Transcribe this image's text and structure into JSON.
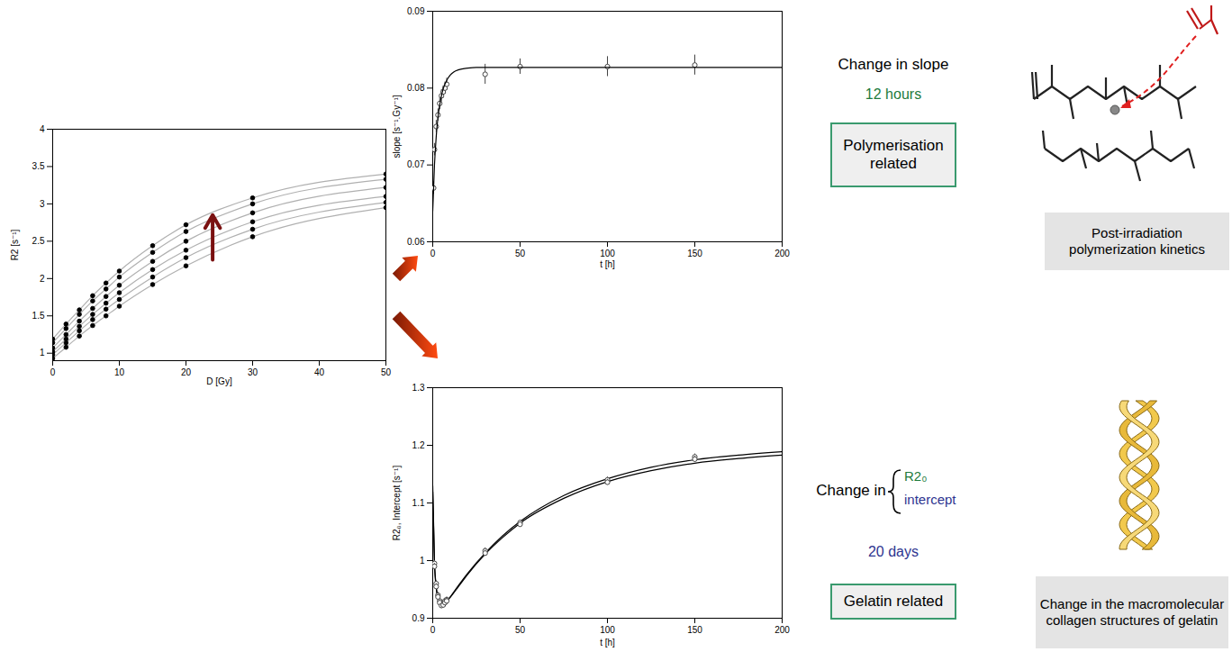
{
  "chart_data": [
    {
      "type": "line",
      "xlabel": "D [Gy]",
      "ylabel": "R2 [s⁻¹]",
      "x": [
        0,
        2,
        4,
        6,
        8,
        10,
        15,
        20,
        30,
        50
      ],
      "series": [
        {
          "color": "#b0b0b0",
          "marker": "circle",
          "values": [
            0.93,
            1.08,
            1.23,
            1.37,
            1.5,
            1.63,
            1.92,
            2.17,
            2.56,
            2.95
          ]
        },
        {
          "color": "#b0b0b0",
          "marker": "circle",
          "values": [
            0.98,
            1.14,
            1.3,
            1.45,
            1.59,
            1.72,
            2.02,
            2.28,
            2.66,
            3.02
          ]
        },
        {
          "color": "#b0b0b0",
          "marker": "circle",
          "values": [
            1.02,
            1.19,
            1.36,
            1.52,
            1.67,
            1.81,
            2.12,
            2.38,
            2.76,
            3.1
          ]
        },
        {
          "color": "#b0b0b0",
          "marker": "circle",
          "values": [
            1.07,
            1.25,
            1.43,
            1.6,
            1.76,
            1.91,
            2.23,
            2.5,
            2.88,
            3.22
          ]
        },
        {
          "color": "#b0b0b0",
          "marker": "circle",
          "values": [
            1.14,
            1.33,
            1.52,
            1.7,
            1.86,
            2.02,
            2.35,
            2.63,
            3.0,
            3.33
          ]
        },
        {
          "color": "#b0b0b0",
          "marker": "circle",
          "values": [
            1.19,
            1.39,
            1.58,
            1.77,
            1.94,
            2.1,
            2.44,
            2.72,
            3.08,
            3.4
          ]
        }
      ],
      "xlim": [
        0,
        50
      ],
      "ylim": [
        0.9,
        4
      ],
      "xticks": [
        0,
        10,
        20,
        30,
        40,
        50
      ],
      "yticks": [
        1,
        1.5,
        2,
        2.5,
        3,
        3.5,
        4
      ],
      "annotations": [
        {
          "type": "arrow",
          "x": 24,
          "y1": 2.25,
          "y2": 2.85,
          "color": "#7a1010"
        }
      ]
    },
    {
      "type": "scatter",
      "xlabel": "t [h]",
      "ylabel": "slope [s⁻¹.Gy⁻¹]",
      "series": [
        {
          "type": "scatter",
          "marker": "open_circle",
          "color": "#444444",
          "x": [
            0.5,
            1,
            2,
            3,
            4,
            5,
            6,
            7,
            8,
            30,
            50,
            100,
            150
          ],
          "values": [
            0.067,
            0.072,
            0.075,
            0.0765,
            0.078,
            0.079,
            0.0795,
            0.08,
            0.0805,
            0.0818,
            0.0828,
            0.0828,
            0.083
          ],
          "errors": [
            0.0008,
            0.0008,
            0.0008,
            0.0008,
            0.0008,
            0.0008,
            0.0008,
            0.0008,
            0.0008,
            0.0013,
            0.001,
            0.0013,
            0.0013
          ]
        },
        {
          "type": "line",
          "color": "#000000",
          "x": [
            0,
            1,
            2,
            3,
            4,
            5,
            6,
            8,
            10,
            12,
            15,
            20,
            25,
            30,
            50,
            100,
            150,
            200
          ],
          "values": [
            0.064,
            0.07,
            0.0737,
            0.0762,
            0.0778,
            0.079,
            0.0799,
            0.081,
            0.0817,
            0.0821,
            0.0824,
            0.0826,
            0.0827,
            0.0827,
            0.0827,
            0.0827,
            0.0827,
            0.0827
          ]
        }
      ],
      "xlim": [
        0,
        200
      ],
      "ylim": [
        0.06,
        0.09
      ],
      "xticks": [
        0,
        50,
        100,
        150,
        200
      ],
      "yticks": [
        0.06,
        0.07,
        0.08,
        0.09
      ]
    },
    {
      "type": "scatter",
      "xlabel": "t [h]",
      "ylabel": "R2₀, Intercept [s⁻¹]",
      "series": [
        {
          "type": "line",
          "color": "#000000",
          "x": [
            0,
            1,
            2,
            3,
            4,
            5,
            6,
            8,
            10,
            15,
            20,
            30,
            40,
            50,
            75,
            100,
            125,
            150,
            175,
            200
          ],
          "values": [
            1.13,
            1.0,
            0.955,
            0.935,
            0.926,
            0.923,
            0.924,
            0.93,
            0.937,
            0.958,
            0.978,
            1.013,
            1.043,
            1.068,
            1.113,
            1.142,
            1.162,
            1.175,
            1.183,
            1.189
          ]
        },
        {
          "type": "line",
          "color": "#000000",
          "x": [
            0,
            1,
            2,
            3,
            4,
            5,
            6,
            8,
            10,
            15,
            20,
            30,
            40,
            50,
            75,
            100,
            125,
            150,
            175,
            200
          ],
          "values": [
            1.12,
            0.995,
            0.952,
            0.933,
            0.925,
            0.922,
            0.923,
            0.929,
            0.936,
            0.956,
            0.976,
            1.011,
            1.04,
            1.065,
            1.108,
            1.137,
            1.156,
            1.169,
            1.177,
            1.183
          ]
        },
        {
          "type": "scatter",
          "marker": "open_circle",
          "color": "#444444",
          "x": [
            1,
            2,
            3,
            4,
            5,
            6,
            7,
            8,
            30,
            50,
            100,
            150
          ],
          "values": [
            0.995,
            0.96,
            0.94,
            0.93,
            0.925,
            0.925,
            0.93,
            0.932,
            1.017,
            1.066,
            1.14,
            1.18
          ],
          "errors": [
            0.005,
            0.005,
            0.005,
            0.005,
            0.005,
            0.005,
            0.005,
            0.005,
            0.005,
            0.004,
            0.005,
            0.005
          ]
        },
        {
          "type": "scatter",
          "marker": "open_circle",
          "color": "#444444",
          "x": [
            1,
            2,
            3,
            4,
            5,
            6,
            7,
            8,
            30,
            50,
            100,
            150
          ],
          "values": [
            0.99,
            0.955,
            0.937,
            0.927,
            0.922,
            0.923,
            0.927,
            0.93,
            1.013,
            1.063,
            1.136,
            1.176
          ],
          "errors": [
            0.005,
            0.005,
            0.005,
            0.005,
            0.005,
            0.005,
            0.005,
            0.005,
            0.005,
            0.004,
            0.005,
            0.005
          ]
        }
      ],
      "xlim": [
        0,
        200
      ],
      "ylim": [
        0.9,
        1.3
      ],
      "xticks": [
        0,
        50,
        100,
        150,
        200
      ],
      "yticks": [
        0.9,
        1,
        1.1,
        1.2,
        1.3
      ]
    }
  ],
  "diagram": {
    "upper": {
      "heading": "Change in slope",
      "time": "12 hours",
      "time_color": "#1e7b3c",
      "box": "Polymerisation related",
      "box_border": "#3a9a6e",
      "caption": "Post-irradiation polymerization kinetics"
    },
    "lower": {
      "heading": "Change in",
      "items": [
        {
          "text": "R2₀",
          "color": "#1e7b3c"
        },
        {
          "text": "intercept",
          "color": "#2e3590"
        }
      ],
      "time": "20 days",
      "time_color": "#2e3590",
      "box": "Gelatin related",
      "box_border": "#3a9a6e",
      "caption": "Change in the macromolecular collagen structures of gelatin"
    }
  }
}
